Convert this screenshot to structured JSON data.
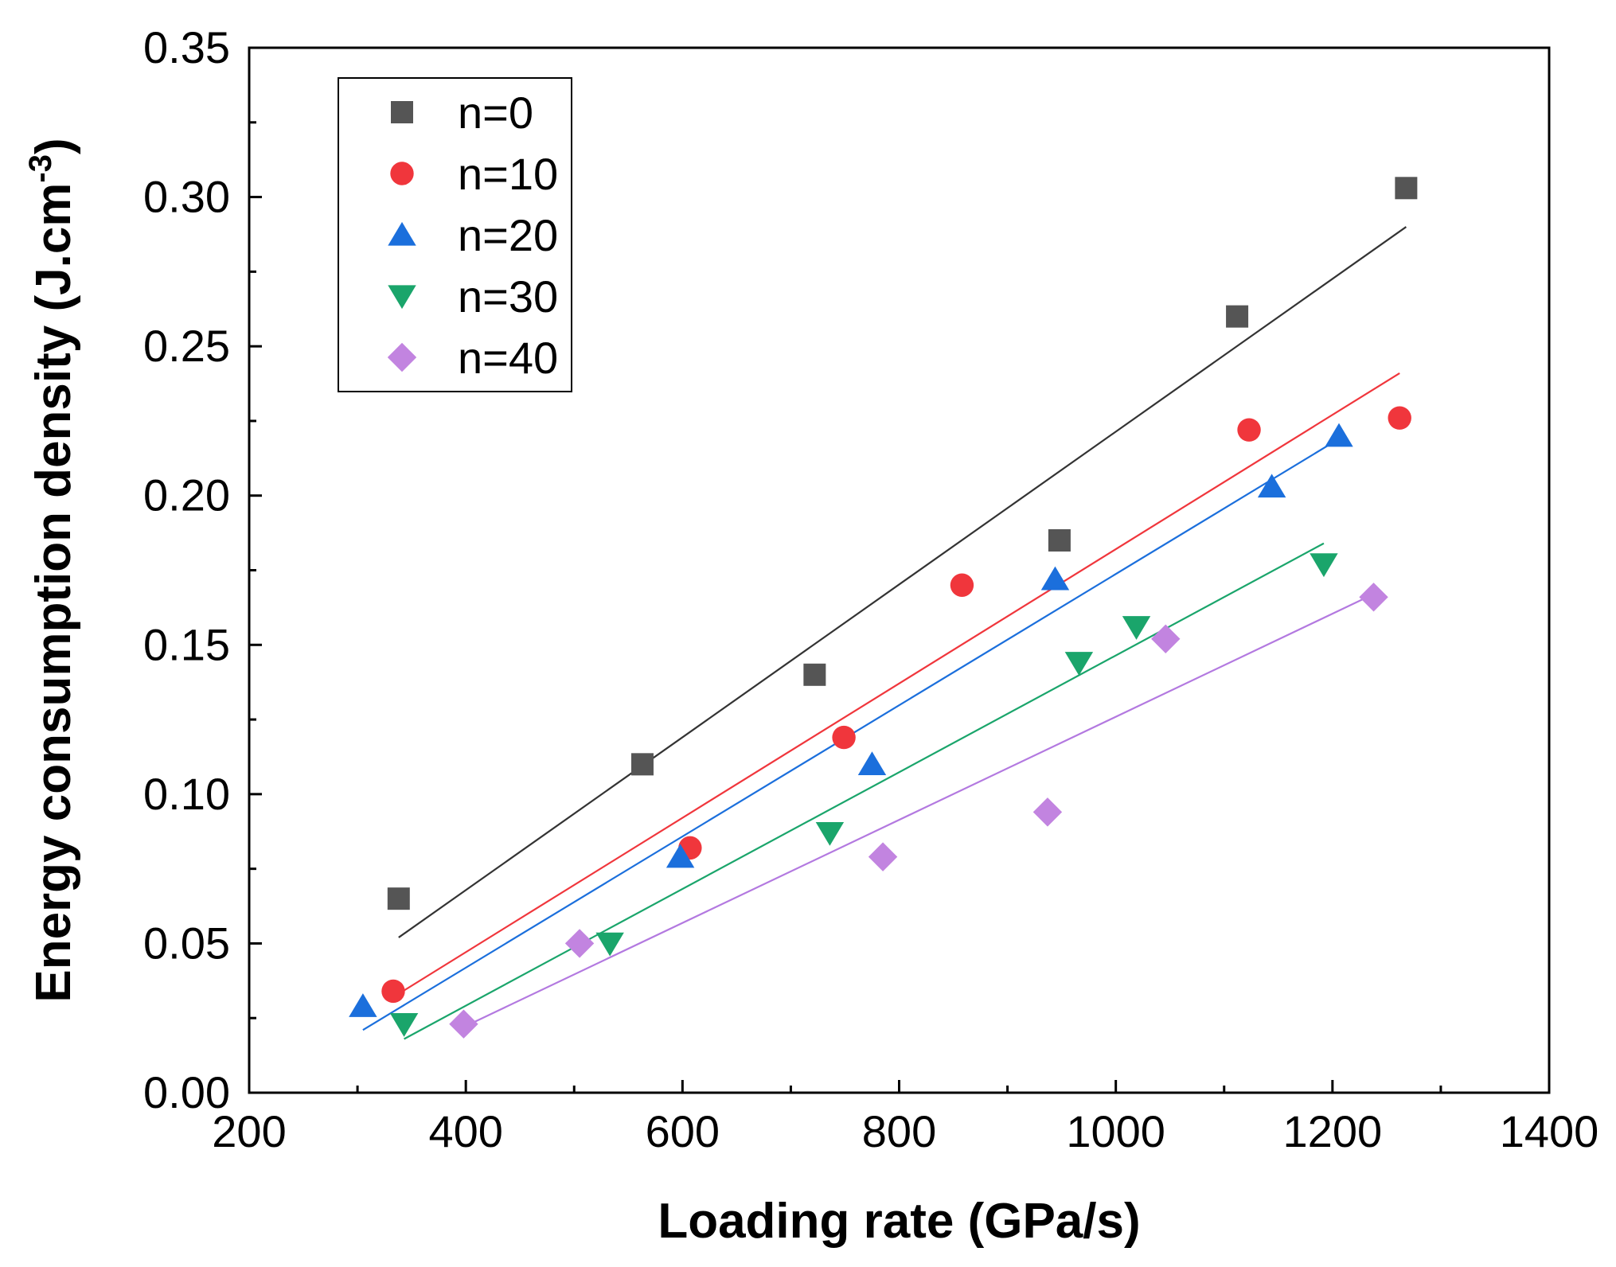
{
  "chart_data": {
    "type": "scatter",
    "xlabel": "Loading rate (GPa/s)",
    "ylabel_main": "Energy consumption density (J.cm",
    "ylabel_sup": "-3",
    "ylabel_close": ")",
    "xlim": [
      200,
      1400
    ],
    "ylim": [
      0,
      0.35
    ],
    "x_ticks": [
      200,
      400,
      600,
      800,
      1000,
      1200,
      1400
    ],
    "x_tick_labels": [
      "200",
      "400",
      "600",
      "800",
      "1000",
      "1200",
      "1400"
    ],
    "y_ticks": [
      0,
      0.05,
      0.1,
      0.15,
      0.2,
      0.25,
      0.3,
      0.35
    ],
    "y_tick_labels": [
      "0.00",
      "0.05",
      "0.10",
      "0.15",
      "0.20",
      "0.25",
      "0.30",
      "0.35"
    ],
    "grid": false,
    "legend_position": "top-left",
    "series": [
      {
        "name": "n=0",
        "marker": "square",
        "color": "#555555",
        "line_color": "#333333",
        "points": [
          [
            338,
            0.065
          ],
          [
            563,
            0.11
          ],
          [
            722,
            0.14
          ],
          [
            948,
            0.185
          ],
          [
            1112,
            0.26
          ],
          [
            1268,
            0.303
          ]
        ],
        "fit": [
          [
            338,
            0.052
          ],
          [
            1268,
            0.29
          ]
        ]
      },
      {
        "name": "n=10",
        "marker": "circle",
        "color": "#f0363c",
        "line_color": "#f0363c",
        "points": [
          [
            333,
            0.034
          ],
          [
            607,
            0.082
          ],
          [
            749,
            0.119
          ],
          [
            858,
            0.17
          ],
          [
            1123,
            0.222
          ],
          [
            1262,
            0.226
          ]
        ],
        "fit": [
          [
            333,
            0.032
          ],
          [
            1262,
            0.241
          ]
        ]
      },
      {
        "name": "n=20",
        "marker": "triangle-up",
        "color": "#1b6fdc",
        "line_color": "#1b6fdc",
        "points": [
          [
            305,
            0.029
          ],
          [
            598,
            0.079
          ],
          [
            775,
            0.11
          ],
          [
            944,
            0.172
          ],
          [
            1144,
            0.203
          ],
          [
            1206,
            0.22
          ]
        ],
        "fit": [
          [
            305,
            0.021
          ],
          [
            1206,
            0.219
          ]
        ]
      },
      {
        "name": "n=30",
        "marker": "triangle-down",
        "color": "#1aa56b",
        "line_color": "#1aa56b",
        "points": [
          [
            343,
            0.023
          ],
          [
            533,
            0.05
          ],
          [
            736,
            0.087
          ],
          [
            966,
            0.144
          ],
          [
            1019,
            0.156
          ],
          [
            1192,
            0.177
          ]
        ],
        "fit": [
          [
            343,
            0.018
          ],
          [
            1192,
            0.184
          ]
        ]
      },
      {
        "name": "n=40",
        "marker": "diamond",
        "color": "#c284e0",
        "line_color": "#b379e0",
        "points": [
          [
            398,
            0.023
          ],
          [
            505,
            0.05
          ],
          [
            785,
            0.079
          ],
          [
            937,
            0.094
          ],
          [
            1046,
            0.152
          ],
          [
            1238,
            0.166
          ]
        ],
        "fit": [
          [
            398,
            0.022
          ],
          [
            1238,
            0.167
          ]
        ]
      }
    ]
  }
}
